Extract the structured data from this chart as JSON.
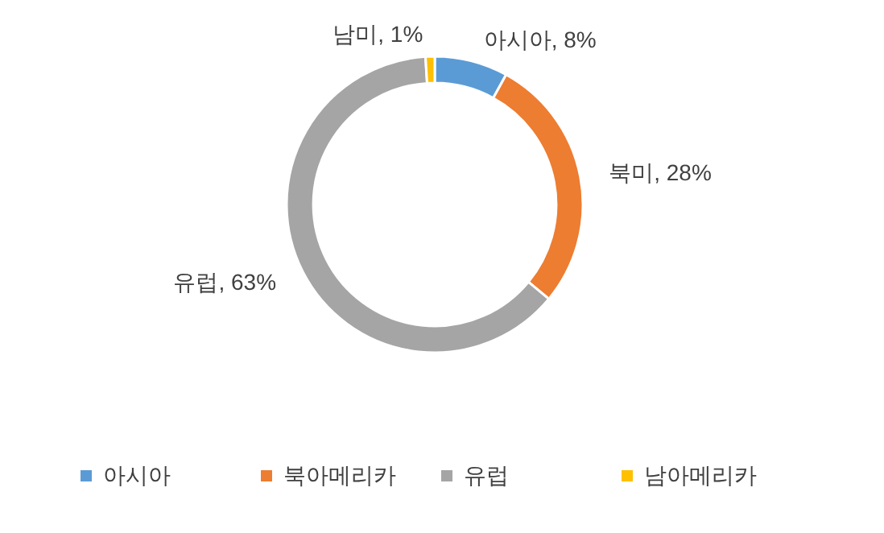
{
  "chart_data": {
    "type": "donut",
    "categories": [
      "아시아",
      "북아메리카",
      "유럽",
      "남아메리카"
    ],
    "values": [
      8,
      28,
      63,
      1
    ],
    "colors": [
      "#5b9bd5",
      "#ed7d31",
      "#a5a5a5",
      "#ffc000"
    ],
    "value_labels": [
      "아시아, 8%",
      "북미, 28%",
      "유럽, 63%",
      "남미, 1%"
    ],
    "legend": "bottom"
  }
}
